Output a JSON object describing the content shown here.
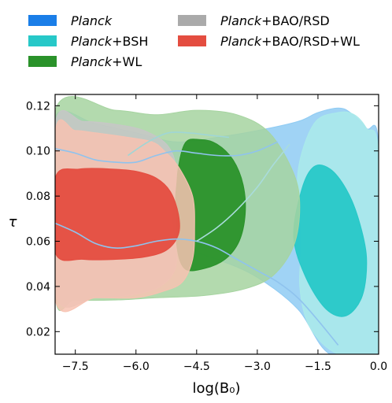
{
  "chart_data": {
    "type": "area",
    "xlabel": "log(B₀)",
    "ylabel": "τ",
    "xlim": [
      -8.0,
      0.0
    ],
    "ylim": [
      0.01,
      0.125
    ],
    "xticks": [
      "−7.5",
      "−6.0",
      "−4.5",
      "−3.0",
      "−1.5",
      "0.0"
    ],
    "xtick_values": [
      -7.5,
      -6.0,
      -4.5,
      -3.0,
      -1.5,
      0.0
    ],
    "yticks": [
      "0.02",
      "0.04",
      "0.06",
      "0.08",
      "0.10",
      "0.12"
    ],
    "ytick_values": [
      0.02,
      0.04,
      0.06,
      0.08,
      0.1,
      0.12
    ],
    "legend_position": "top",
    "series": [
      {
        "name_italic": "Planck",
        "name_rest": "",
        "color_inner": "#1a7ee8",
        "color_outer": "#8fcbf3",
        "regions": [
          {
            "level": "95%",
            "points": [
              [
                -8.0,
                0.115
              ],
              [
                -7.0,
                0.112
              ],
              [
                -6.0,
                0.108
              ],
              [
                -5.0,
                0.104
              ],
              [
                -4.0,
                0.106
              ],
              [
                -3.0,
                0.109
              ],
              [
                -2.0,
                0.113
              ],
              [
                -1.5,
                0.117
              ],
              [
                -1.0,
                0.119
              ],
              [
                -0.7,
                0.117
              ],
              [
                -0.3,
                0.11
              ],
              [
                0.0,
                0.102
              ],
              [
                0.0,
                0.01
              ],
              [
                -1.2,
                0.01
              ],
              [
                -2.0,
                0.03
              ],
              [
                -3.0,
                0.044
              ],
              [
                -4.0,
                0.052
              ],
              [
                -5.0,
                0.057
              ],
              [
                -6.0,
                0.06
              ],
              [
                -7.0,
                0.062
              ],
              [
                -8.0,
                0.07
              ]
            ]
          }
        ]
      },
      {
        "name_italic": "Planck",
        "name_rest": "+BSH",
        "color_inner": "#27c8c8",
        "color_outer": "#aaeaea",
        "regions": [
          {
            "level": "95%",
            "points": [
              [
                -1.9,
                0.062
              ],
              [
                -2.0,
                0.09
              ],
              [
                -1.6,
                0.112
              ],
              [
                -1.0,
                0.117
              ],
              [
                -0.6,
                0.116
              ],
              [
                -0.3,
                0.11
              ],
              [
                0.0,
                0.098
              ],
              [
                0.0,
                0.01
              ],
              [
                -1.0,
                0.01
              ],
              [
                -1.7,
                0.022
              ],
              [
                -1.95,
                0.04
              ]
            ]
          },
          {
            "level": "68%",
            "points": [
              [
                -2.1,
                0.062
              ],
              [
                -1.9,
                0.083
              ],
              [
                -1.6,
                0.093
              ],
              [
                -1.2,
                0.092
              ],
              [
                -0.8,
                0.083
              ],
              [
                -0.5,
                0.07
              ],
              [
                -0.3,
                0.053
              ],
              [
                -0.4,
                0.036
              ],
              [
                -0.8,
                0.027
              ],
              [
                -1.3,
                0.03
              ],
              [
                -1.8,
                0.044
              ]
            ]
          }
        ]
      },
      {
        "name_italic": "Planck",
        "name_rest": "+WL",
        "color_inner": "#2a922a",
        "color_outer": "#a6d4a0",
        "regions": [
          {
            "level": "95%",
            "points": [
              [
                -8.0,
                0.118
              ],
              [
                -6.5,
                0.118
              ],
              [
                -5.5,
                0.116
              ],
              [
                -4.5,
                0.118
              ],
              [
                -3.5,
                0.116
              ],
              [
                -2.7,
                0.108
              ],
              [
                -2.1,
                0.09
              ],
              [
                -1.95,
                0.075
              ],
              [
                -2.1,
                0.058
              ],
              [
                -2.6,
                0.045
              ],
              [
                -3.3,
                0.039
              ],
              [
                -4.3,
                0.036
              ],
              [
                -5.5,
                0.035
              ],
              [
                -6.5,
                0.034
              ],
              [
                -7.5,
                0.034
              ],
              [
                -8.0,
                0.036
              ]
            ]
          },
          {
            "level": "68%",
            "points": [
              [
                -4.8,
                0.103
              ],
              [
                -4.4,
                0.105
              ],
              [
                -4.0,
                0.103
              ],
              [
                -3.6,
                0.096
              ],
              [
                -3.35,
                0.085
              ],
              [
                -3.3,
                0.072
              ],
              [
                -3.45,
                0.06
              ],
              [
                -3.8,
                0.052
              ],
              [
                -4.3,
                0.048
              ],
              [
                -4.8,
                0.048
              ],
              [
                -5.0,
                0.06
              ],
              [
                -5.0,
                0.085
              ]
            ]
          }
        ]
      },
      {
        "name_italic": "Planck",
        "name_rest": "+BAO/RSD",
        "color_inner": "#8a8a8a",
        "color_outer": "#c7c7c7",
        "regions": [
          {
            "level": "95%",
            "points": [
              [
                -8.0,
                0.112
              ],
              [
                -7.3,
                0.113
              ],
              [
                -6.6,
                0.112
              ],
              [
                -5.8,
                0.109
              ],
              [
                -5.2,
                0.102
              ],
              [
                -5.0,
                0.09
              ],
              [
                -5.1,
                0.07
              ],
              [
                -5.0,
                0.05
              ],
              [
                -5.4,
                0.04
              ],
              [
                -6.2,
                0.036
              ],
              [
                -7.0,
                0.035
              ],
              [
                -8.0,
                0.037
              ]
            ]
          }
        ]
      },
      {
        "name_italic": "Planck",
        "name_rest": "+BAO/RSD+WL",
        "color_inner": "#e44d40",
        "color_outer": "#f7c2b1",
        "regions": [
          {
            "level": "95%",
            "points": [
              [
                -8.0,
                0.108
              ],
              [
                -7.5,
                0.109
              ],
              [
                -7.0,
                0.108
              ],
              [
                -6.2,
                0.106
              ],
              [
                -5.6,
                0.104
              ],
              [
                -5.3,
                0.1
              ],
              [
                -4.95,
                0.093
              ],
              [
                -4.6,
                0.08
              ],
              [
                -4.55,
                0.065
              ],
              [
                -4.6,
                0.052
              ],
              [
                -4.85,
                0.042
              ],
              [
                -5.3,
                0.038
              ],
              [
                -6.0,
                0.035
              ],
              [
                -7.0,
                0.035
              ],
              [
                -8.0,
                0.034
              ]
            ]
          },
          {
            "level": "68%",
            "points": [
              [
                -8.0,
                0.088
              ],
              [
                -7.4,
                0.092
              ],
              [
                -6.6,
                0.092
              ],
              [
                -6.0,
                0.091
              ],
              [
                -5.5,
                0.088
              ],
              [
                -5.15,
                0.082
              ],
              [
                -4.95,
                0.072
              ],
              [
                -4.95,
                0.063
              ],
              [
                -5.25,
                0.056
              ],
              [
                -5.8,
                0.053
              ],
              [
                -6.5,
                0.052
              ],
              [
                -7.3,
                0.052
              ],
              [
                -8.0,
                0.055
              ]
            ]
          }
        ]
      }
    ],
    "contour_lines": [
      {
        "color": "#8fc3ee",
        "points": [
          [
            -8.0,
            0.101
          ],
          [
            -7.5,
            0.099
          ],
          [
            -7.0,
            0.096
          ],
          [
            -6.5,
            0.095
          ],
          [
            -6.0,
            0.095
          ],
          [
            -5.5,
            0.098
          ],
          [
            -5.0,
            0.1
          ],
          [
            -4.5,
            0.099
          ],
          [
            -4.0,
            0.098
          ],
          [
            -3.5,
            0.098
          ],
          [
            -3.0,
            0.1
          ],
          [
            -2.5,
            0.104
          ]
        ]
      },
      {
        "color": "#8fc3ee",
        "points": [
          [
            -8.0,
            0.068
          ],
          [
            -7.5,
            0.064
          ],
          [
            -7.0,
            0.059
          ],
          [
            -6.5,
            0.057
          ],
          [
            -6.0,
            0.058
          ],
          [
            -5.5,
            0.06
          ],
          [
            -5.0,
            0.061
          ],
          [
            -4.5,
            0.06
          ],
          [
            -4.0,
            0.057
          ],
          [
            -3.5,
            0.052
          ],
          [
            -3.0,
            0.047
          ],
          [
            -2.5,
            0.042
          ],
          [
            -2.0,
            0.035
          ],
          [
            -1.5,
            0.025
          ],
          [
            -1.0,
            0.014
          ]
        ]
      },
      {
        "color": "#a9dcdc",
        "points": [
          [
            -4.5,
            0.06
          ],
          [
            -4.0,
            0.066
          ],
          [
            -3.5,
            0.074
          ],
          [
            -3.0,
            0.084
          ],
          [
            -2.6,
            0.094
          ],
          [
            -2.2,
            0.103
          ]
        ]
      },
      {
        "color": "#9fd6d6",
        "points": [
          [
            -6.2,
            0.098
          ],
          [
            -5.7,
            0.104
          ],
          [
            -5.2,
            0.108
          ],
          [
            -4.7,
            0.108
          ],
          [
            -4.2,
            0.107
          ],
          [
            -3.7,
            0.106
          ]
        ]
      }
    ]
  }
}
